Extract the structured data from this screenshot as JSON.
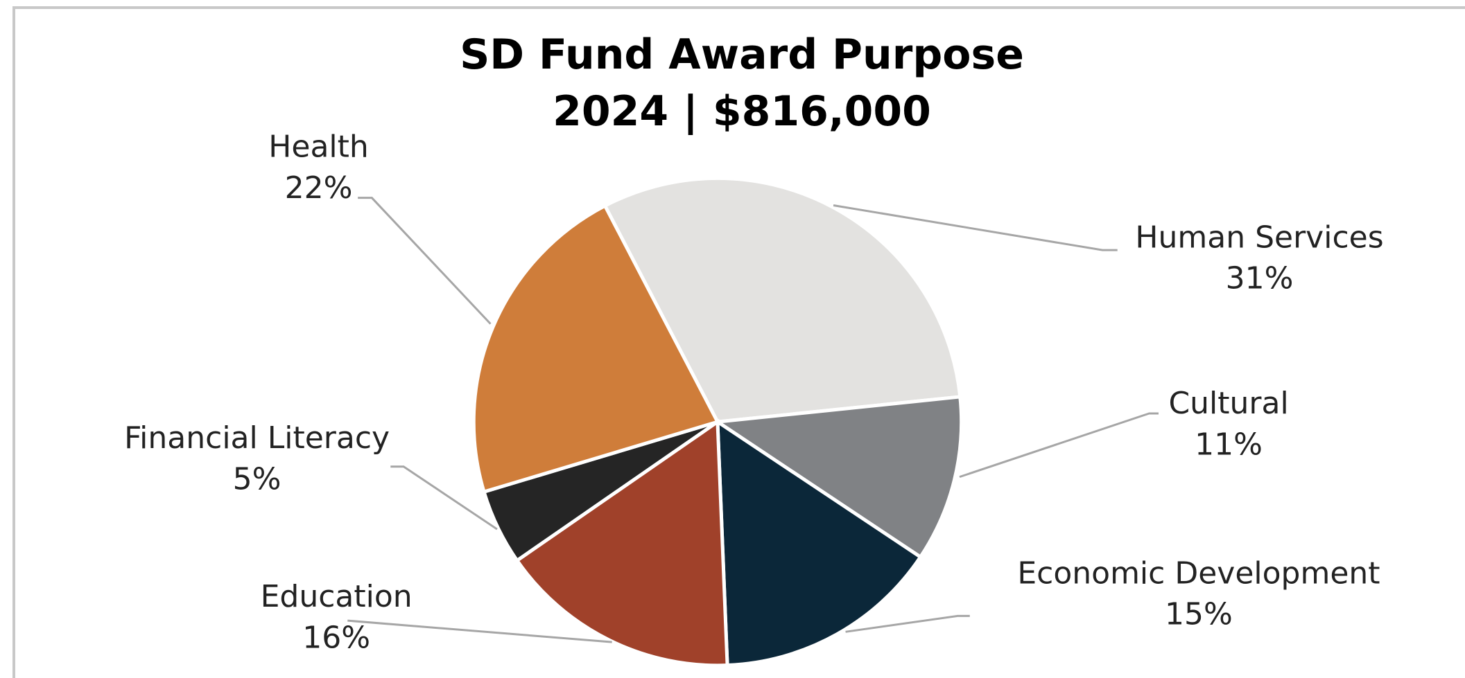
{
  "chart_data": {
    "type": "pie",
    "title": [
      "SD Fund Award Purpose",
      "2024 | $816,000"
    ],
    "categories": [
      "Human Services",
      "Cultural",
      "Economic Development",
      "Education",
      "Financial Literacy",
      "Health"
    ],
    "values": [
      31,
      11,
      15,
      16,
      5,
      22
    ],
    "value_labels": [
      "31%",
      "11%",
      "15%",
      "16%",
      "5%",
      "22%"
    ],
    "colors": [
      "#e3e2e0",
      "#808285",
      "#0b2739",
      "#a0412a",
      "#252525",
      "#cf7d3a"
    ]
  }
}
